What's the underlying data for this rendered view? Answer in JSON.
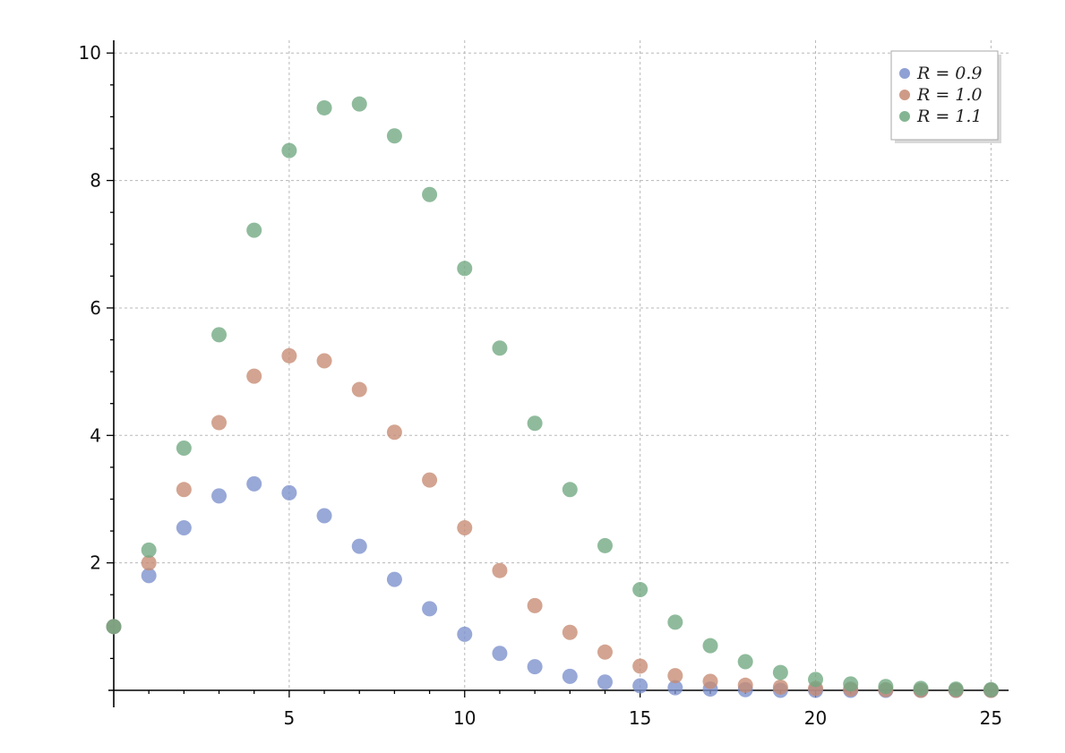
{
  "chart_data": {
    "type": "scatter",
    "title": "",
    "xlabel": "",
    "ylabel": "",
    "xlim": [
      0,
      25.5
    ],
    "ylim": [
      0,
      10.2
    ],
    "x_ticks": [
      5,
      10,
      15,
      20,
      25
    ],
    "y_ticks": [
      2,
      4,
      6,
      8,
      10
    ],
    "grid": true,
    "legend_position": "top-right",
    "x": [
      0,
      1,
      2,
      3,
      4,
      5,
      6,
      7,
      8,
      9,
      10,
      11,
      12,
      13,
      14,
      15,
      16,
      17,
      18,
      19,
      20,
      21,
      22,
      23,
      24,
      25
    ],
    "series": [
      {
        "name": "R = 0.9",
        "color": "#7b8fcc",
        "values": [
          1.0,
          1.8,
          2.55,
          3.05,
          3.24,
          3.1,
          2.74,
          2.26,
          1.74,
          1.28,
          0.88,
          0.58,
          0.37,
          0.22,
          0.13,
          0.07,
          0.04,
          0.02,
          0.01,
          0.0,
          0.0,
          0.0,
          0.0,
          0.0,
          0.0,
          0.0
        ]
      },
      {
        "name": "R = 1.0",
        "color": "#c68a72",
        "values": [
          1.0,
          2.0,
          3.15,
          4.2,
          4.93,
          5.25,
          5.17,
          4.72,
          4.05,
          3.3,
          2.55,
          1.88,
          1.33,
          0.91,
          0.6,
          0.38,
          0.23,
          0.14,
          0.08,
          0.05,
          0.03,
          0.02,
          0.01,
          0.0,
          0.0,
          0.0
        ]
      },
      {
        "name": "R = 1.1",
        "color": "#6fa880",
        "values": [
          1.0,
          2.2,
          3.8,
          5.58,
          7.22,
          8.47,
          9.14,
          9.2,
          8.7,
          7.78,
          6.62,
          5.37,
          4.19,
          3.15,
          2.27,
          1.58,
          1.07,
          0.7,
          0.45,
          0.28,
          0.17,
          0.1,
          0.06,
          0.03,
          0.02,
          0.01
        ]
      }
    ],
    "legend": [
      {
        "label": "R = 0.9",
        "color": "#7b8fcc"
      },
      {
        "label": "R = 1.0",
        "color": "#c68a72"
      },
      {
        "label": "R = 1.1",
        "color": "#6fa880"
      }
    ]
  }
}
